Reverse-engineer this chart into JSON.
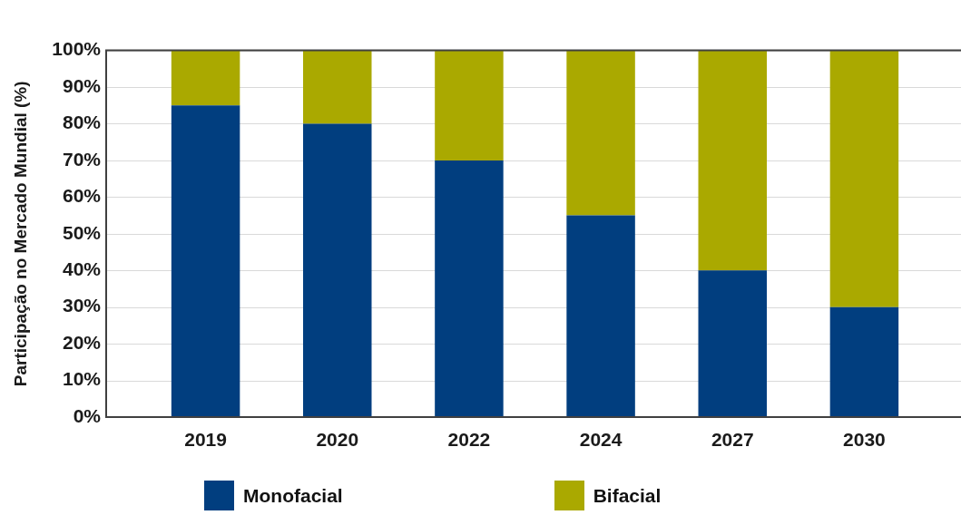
{
  "chart_data": {
    "type": "bar",
    "ylabel": "Participação no Mercado Mundial (%)",
    "categories": [
      "2019",
      "2020",
      "2022",
      "2024",
      "2027",
      "2030"
    ],
    "series": [
      {
        "name": "Monofacial",
        "color": "#013e7f",
        "values": [
          85,
          80,
          70,
          55,
          40,
          30
        ]
      },
      {
        "name": "Bifacial",
        "color": "#aaa900",
        "values": [
          15,
          20,
          30,
          45,
          60,
          70
        ]
      }
    ],
    "stacked": true,
    "ylim": [
      0,
      100
    ],
    "yticks": [
      {
        "value": 0,
        "label": "0%"
      },
      {
        "value": 10,
        "label": "10%"
      },
      {
        "value": 20,
        "label": "20%"
      },
      {
        "value": 30,
        "label": "30%"
      },
      {
        "value": 40,
        "label": "40%"
      },
      {
        "value": 50,
        "label": "50%"
      },
      {
        "value": 60,
        "label": "60%"
      },
      {
        "value": 70,
        "label": "70%"
      },
      {
        "value": 80,
        "label": "80%"
      },
      {
        "value": 90,
        "label": "90%"
      },
      {
        "value": 100,
        "label": "100%"
      }
    ],
    "grid": "y",
    "legend": "bottom"
  }
}
